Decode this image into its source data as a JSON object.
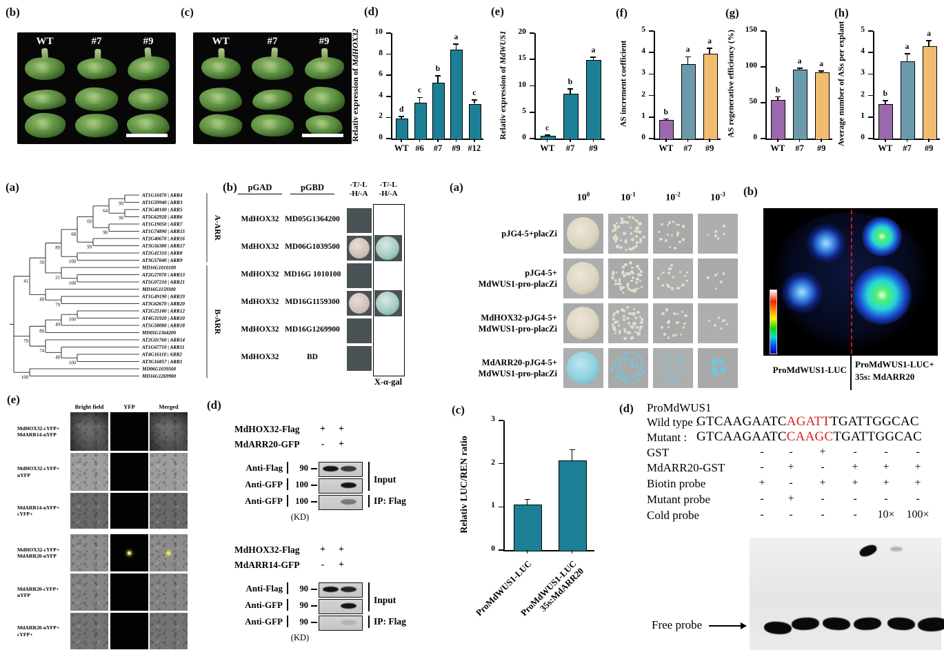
{
  "figure": {
    "photo_b": {
      "tag": "(b)",
      "columns": [
        "WT",
        "#7",
        "#9"
      ]
    },
    "photo_c": {
      "tag": "(c)",
      "columns": [
        "WT",
        "#7",
        "#9"
      ]
    },
    "tree": {
      "tag": "(a)",
      "groups": [
        {
          "label": "A-ARR",
          "from": 0,
          "to": 9
        },
        {
          "label": "B-ARR",
          "from": 10,
          "to": 25
        }
      ],
      "topology": {
        "children": [
          {
            "bs": "41",
            "children": [
              {
                "bs": "39",
                "children": [
                  {
                    "bs": "89",
                    "children": [
                      {
                        "bs": "68",
                        "children": [
                          {
                            "bs": "69",
                            "children": [
                              {
                                "bs": "64",
                                "children": [
                                  {
                                    "bs": "99",
                                    "children": [
                                      {
                                        "leaf": "AT1G10470 | ARR4"
                                      },
                                      {
                                        "leaf": "AT1G59940 | ARR3"
                                      }
                                    ]
                                  },
                                  {
                                    "bs": "99",
                                    "children": [
                                      {
                                        "leaf": "AT3G48100 | ARR5"
                                      },
                                      {
                                        "leaf": "AT5G62920 | ARR6"
                                      }
                                    ]
                                  }
                                ]
                              },
                              {
                                "bs": "90",
                                "children": [
                                  {
                                    "leaf": "AT1G19050 | ARR7"
                                  },
                                  {
                                    "leaf": "AT1G74890 | ARR15"
                                  }
                                ]
                              }
                            ]
                          },
                          {
                            "bs": "99",
                            "children": [
                              {
                                "leaf": "AT2G40670 | ARR16"
                              },
                              {
                                "leaf": "AT3G56380 | ARR17"
                              }
                            ]
                          }
                        ]
                      },
                      {
                        "bs": "100",
                        "children": [
                          {
                            "leaf": "AT2G41310 | ARR8"
                          },
                          {
                            "leaf": "AT3G57040 | ARR9"
                          }
                        ]
                      }
                    ]
                  },
                  {
                    "bs": "21",
                    "children": [
                      {
                        "leaf": "MD16G1010100"
                      },
                      {
                        "bs": "100",
                        "children": [
                          {
                            "leaf": "AT2G27070 | ARR13"
                          },
                          {
                            "leaf": "AT5G07210 | ARR21"
                          }
                        ]
                      }
                    ]
                  }
                ]
              },
              {
                "bs": "49",
                "children": [
                  {
                    "leaf": "MD16G1159300"
                  },
                  {
                    "bs": "79",
                    "children": [
                      {
                        "leaf": "AT1G49190 | ARR19"
                      },
                      {
                        "leaf": "AT3G62670 | ARR20"
                      }
                    ]
                  }
                ]
              }
            ]
          },
          {
            "bs": "79",
            "children": [
              {
                "bs": "80",
                "children": [
                  {
                    "bs": "49",
                    "children": [
                      {
                        "bs": "100",
                        "children": [
                          {
                            "leaf": "AT2G25180 | ARR12"
                          },
                          {
                            "leaf": "AT4G31920 | ARR10"
                          }
                        ]
                      },
                      {
                        "leaf": "AT5G58080 | ARR18"
                      }
                    ]
                  },
                  {
                    "leaf": "MD05G1364200"
                  }
                ]
              },
              {
                "bs": "74",
                "children": [
                  {
                    "leaf": "AT2G01760 | ARR14"
                  },
                  {
                    "bs": "40",
                    "children": [
                      {
                        "leaf": "AT1G67710 | ARR11"
                      },
                      {
                        "bs": "100",
                        "children": [
                          {
                            "leaf": "AT4G16110 | ARR2"
                          },
                          {
                            "leaf": "AT3G16857 | ARR1"
                          }
                        ]
                      }
                    ]
                  }
                ]
              }
            ]
          },
          {
            "bs": "100",
            "children": [
              {
                "leaf": "MD06G1039500"
              },
              {
                "leaf": "MD16G1269900"
              }
            ]
          }
        ]
      }
    },
    "y2h": {
      "tag": "(b)",
      "col_gad": "pGAD",
      "col_gbd": "pGBD",
      "selection_header": "-T/-L\n-H/-A",
      "xgal_label": "X-α-gal",
      "rows": [
        {
          "gad": "MdHOX32",
          "gbd": "MD05G1364200",
          "interaction": false
        },
        {
          "gad": "MdHOX32",
          "gbd": "MD06G1039500",
          "interaction": true
        },
        {
          "gad": "MdHOX32",
          "gbd": "MD16G 1010100",
          "interaction": false
        },
        {
          "gad": "MdHOX32",
          "gbd": "MD16G1159300",
          "interaction": true
        },
        {
          "gad": "MdHOX32",
          "gbd": "MD16G1269900",
          "interaction": false
        },
        {
          "gad": "MdHOX32",
          "gbd": "BD",
          "interaction": false
        }
      ]
    },
    "yeast": {
      "tag": "(a)",
      "dilutions": [
        {
          "base": "10",
          "exp": "0"
        },
        {
          "base": "10",
          "exp": "-1"
        },
        {
          "base": "10",
          "exp": "-2"
        },
        {
          "base": "10",
          "exp": "-3"
        }
      ],
      "rows": [
        {
          "label": "pJG4-5+placZi",
          "blue": false
        },
        {
          "label": "pJG4-5+\nMdWUS1-pro-placZi",
          "blue": false
        },
        {
          "label": "MdHOX32-pJG4-5+\nMdWUS1-pro-placZi",
          "blue": false
        },
        {
          "label": "MdARR20-pJG4-5+\nMdWUS1-pro-placZi",
          "blue": true
        }
      ]
    },
    "luc": {
      "tag": "(b)",
      "left_label": "ProMdWUS1-LUC",
      "right_label_line1": "ProMdWUS1-LUC+",
      "right_label_line2": "35s: MdARR20"
    },
    "bifc": {
      "tag": "(e)",
      "col_headers": [
        "Bright field",
        "YFP",
        "Merged"
      ],
      "rows": [
        {
          "line1": "MdHOX32-cYFP+",
          "line2": "MdARR14-nYFP",
          "signal": false,
          "shade": "#7b7b7b",
          "veins": true
        },
        {
          "line1": "MdHOX32-cYFP+",
          "line2": "nYFP",
          "signal": false,
          "shade": "#9d9d9d",
          "veins": false
        },
        {
          "line1": "MdARR14-nYFP+",
          "line2": "cYFP+",
          "signal": false,
          "shade": "#696969",
          "veins": false
        },
        {
          "line1": "MdHOX32-cYFP+",
          "line2": "MdARR20-nYFP",
          "signal": true,
          "shade": "#8c8c8c",
          "veins": false
        },
        {
          "line1": "MdARR20-cYFP+",
          "line2": "nYFP",
          "signal": false,
          "shade": "#848484",
          "veins": false
        },
        {
          "line1": "MdARR20-nYFP+",
          "line2": "cYFP+",
          "signal": false,
          "shade": "#747474",
          "veins": false
        }
      ]
    },
    "coip": {
      "tag": "(d)",
      "kd_unit": "(KD)",
      "blocks": [
        {
          "bait_label": "MdHOX32-Flag",
          "bait_vals": [
            "+",
            "+"
          ],
          "prey_label": "MdARR20-GFP",
          "prey_vals": [
            "-",
            "+"
          ],
          "blots": [
            {
              "antibody": "Anti-Flag",
              "kd": "90",
              "bands": [
                1,
                0.8
              ],
              "group": "Input"
            },
            {
              "antibody": "Anti-GFP",
              "kd": "100",
              "bands": [
                0,
                1
              ],
              "group": "Input"
            },
            {
              "antibody": "Anti-GFP",
              "kd": "100",
              "bands": [
                0,
                0.45
              ],
              "group": "IP: Flag"
            }
          ]
        },
        {
          "bait_label": "MdHOX32-Flag",
          "bait_vals": [
            "+",
            "+"
          ],
          "prey_label": "MdARR14-GFP",
          "prey_vals": [
            "-",
            "+"
          ],
          "blots": [
            {
              "antibody": "Anti-Flag",
              "kd": "90",
              "bands": [
                1,
                0.9
              ],
              "group": "Input"
            },
            {
              "antibody": "Anti-GFP",
              "kd": "90",
              "bands": [
                0,
                1
              ],
              "group": "Input"
            },
            {
              "antibody": "Anti-GFP",
              "kd": "90",
              "bands": [
                0,
                0.12
              ],
              "group": "IP: Flag"
            }
          ]
        }
      ]
    },
    "emsa": {
      "tag": "(d)",
      "title": "ProMdWUS1",
      "wild": {
        "label": "Wild type :",
        "pre": "GTCAAGAATC",
        "red": "AGATT",
        "post": "TGATTGGCAC"
      },
      "mutant": {
        "label": "Mutant :",
        "pre": "GTCAAGAATC",
        "red": "CAAGC",
        "post": "TGATTGGCAC"
      },
      "rows": [
        {
          "label": "GST",
          "vals": [
            "-",
            "-",
            "+",
            "-",
            "-",
            "-"
          ]
        },
        {
          "label": "MdARR20-GST",
          "vals": [
            "-",
            "+",
            "-",
            "+",
            "+",
            "+"
          ]
        },
        {
          "label": "Biotin probe",
          "vals": [
            "+",
            "-",
            "+",
            "+",
            "+",
            "+"
          ]
        },
        {
          "label": "Mutant probe",
          "vals": [
            "-",
            "+",
            "-",
            "-",
            "-",
            "-"
          ]
        },
        {
          "label": "Cold probe",
          "vals": [
            "-",
            "-",
            "-",
            "-",
            "10×",
            "100×"
          ]
        }
      ],
      "free_probe_label": "Free probe",
      "shift_lane": 4
    }
  },
  "chart_data": [
    {
      "id": "d",
      "tag": "(d)",
      "type": "bar",
      "ylabel_prefix": "Relativ expression of ",
      "ylabel_italic": "MdHOX32",
      "categories": [
        "WT",
        "#6",
        "#7",
        "#9",
        "#12"
      ],
      "values": [
        1.9,
        3.4,
        5.3,
        8.4,
        3.3
      ],
      "errors": [
        0.2,
        0.5,
        0.65,
        0.55,
        0.35
      ],
      "letters": [
        "d",
        "c",
        "b",
        "a",
        "c"
      ],
      "ylim": [
        0,
        10
      ],
      "yticks": [
        0,
        2,
        4,
        6,
        8,
        10
      ],
      "colors": [
        "#1c7f96"
      ],
      "grid": false
    },
    {
      "id": "e",
      "tag": "(e)",
      "type": "bar",
      "ylabel_prefix": "Relativ expression of ",
      "ylabel_italic": "MdWUS1",
      "categories": [
        "WT",
        "#7",
        "#9"
      ],
      "values": [
        0.5,
        8.5,
        14.9
      ],
      "errors": [
        0.15,
        0.9,
        0.5
      ],
      "letters": [
        "c",
        "b",
        "a"
      ],
      "ylim": [
        0,
        20
      ],
      "yticks": [
        0,
        5,
        10,
        15,
        20
      ],
      "colors": [
        "#1c7f96"
      ],
      "grid": false
    },
    {
      "id": "f",
      "tag": "(f)",
      "type": "bar",
      "ylabel": "AS increment coefficient",
      "categories": [
        "WT",
        "#7",
        "#9"
      ],
      "values": [
        0.85,
        3.45,
        3.95
      ],
      "errors": [
        0.06,
        0.35,
        0.25
      ],
      "letters": [
        "b",
        "a",
        "a"
      ],
      "ylim": [
        0,
        5
      ],
      "yticks": [
        0,
        1,
        2,
        3,
        4,
        5
      ],
      "colors": [
        "#9a68ab",
        "#6b9aab",
        "#f0bd70"
      ],
      "grid": false
    },
    {
      "id": "g",
      "tag": "(g)",
      "type": "bar",
      "ylabel": "AS regenerative efficiency (%)",
      "categories": [
        "WT",
        "#7",
        "#9"
      ],
      "values": [
        54,
        96,
        92
      ],
      "errors": [
        4,
        2,
        2
      ],
      "letters": [
        "b",
        "a",
        "a"
      ],
      "ylim": [
        0,
        150
      ],
      "yticks": [
        0,
        50,
        100,
        150
      ],
      "colors": [
        "#9a68ab",
        "#6b9aab",
        "#f0bd70"
      ],
      "grid": false
    },
    {
      "id": "h",
      "tag": "(h)",
      "type": "bar",
      "ylabel": "Average number of ASs per explant",
      "categories": [
        "WT",
        "#7",
        "#9"
      ],
      "values": [
        1.6,
        3.6,
        4.3
      ],
      "errors": [
        0.17,
        0.35,
        0.25
      ],
      "letters": [
        "b",
        "a",
        "a"
      ],
      "ylim": [
        0,
        5
      ],
      "yticks": [
        0,
        1,
        2,
        3,
        4,
        5
      ],
      "colors": [
        "#9a68ab",
        "#6b9aab",
        "#f0bd70"
      ],
      "grid": false
    },
    {
      "id": "c_luc",
      "tag": "(c)",
      "type": "bar",
      "ylabel": "Relativ LUC/REN ratio",
      "categories": [
        "ProMdWUS1-LUC",
        "ProMdWUS1-LUC\n35s:MdARR20"
      ],
      "values": [
        1.05,
        2.07
      ],
      "errors": [
        0.12,
        0.25
      ],
      "letters": [
        "",
        ""
      ],
      "ylim": [
        0,
        3
      ],
      "yticks": [
        0,
        1,
        2,
        3
      ],
      "colors": [
        "#1c7f96"
      ],
      "grid": false,
      "x_rotate": 45
    }
  ]
}
